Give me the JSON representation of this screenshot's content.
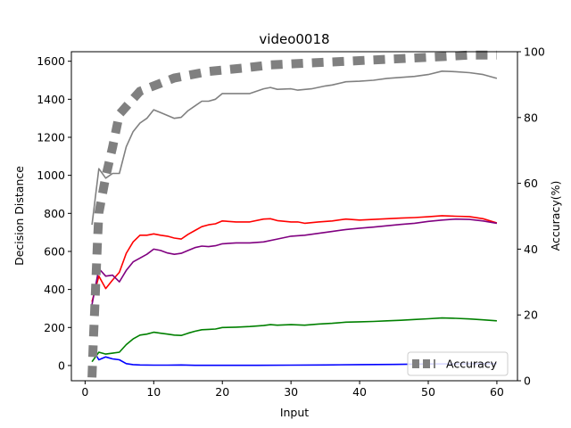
{
  "chart_data": {
    "type": "line",
    "title": "video0018",
    "xlabel": "Input",
    "ylabel_left": "Decision Distance",
    "ylabel_right": "Accuracy(%)",
    "xlim": [
      -2,
      63
    ],
    "ylim_left": [
      -80,
      1650
    ],
    "ylim_right": [
      0,
      100
    ],
    "x_ticks": [
      0,
      10,
      20,
      30,
      40,
      50,
      60
    ],
    "y_ticks_left": [
      0,
      200,
      400,
      600,
      800,
      1000,
      1200,
      1400,
      1600
    ],
    "y_ticks_right": [
      0,
      20,
      40,
      60,
      80,
      100
    ],
    "grid": false,
    "legend": {
      "placement": "lower-right",
      "entries": [
        "Accuracy"
      ]
    },
    "colors": {
      "gray": "#808080",
      "red": "#ff0000",
      "purple": "#800080",
      "green": "#008000",
      "blue": "#0000ff",
      "accuracy": "#808080"
    },
    "series_left": [
      {
        "color": "gray",
        "points": [
          [
            1,
            740
          ],
          [
            2,
            1035
          ],
          [
            3,
            985
          ],
          [
            4,
            1010
          ],
          [
            5,
            1010
          ],
          [
            6,
            1150
          ],
          [
            7,
            1230
          ],
          [
            8,
            1275
          ],
          [
            9,
            1300
          ],
          [
            10,
            1345
          ],
          [
            11,
            1330
          ],
          [
            12,
            1315
          ],
          [
            13,
            1300
          ],
          [
            14,
            1305
          ],
          [
            15,
            1340
          ],
          [
            16,
            1365
          ],
          [
            17,
            1390
          ],
          [
            18,
            1390
          ],
          [
            19,
            1400
          ],
          [
            20,
            1430
          ],
          [
            22,
            1430
          ],
          [
            24,
            1430
          ],
          [
            26,
            1455
          ],
          [
            27,
            1462
          ],
          [
            28,
            1452
          ],
          [
            30,
            1455
          ],
          [
            31,
            1448
          ],
          [
            33,
            1455
          ],
          [
            35,
            1470
          ],
          [
            36,
            1475
          ],
          [
            38,
            1492
          ],
          [
            40,
            1495
          ],
          [
            42,
            1500
          ],
          [
            44,
            1510
          ],
          [
            46,
            1515
          ],
          [
            48,
            1520
          ],
          [
            50,
            1530
          ],
          [
            52,
            1548
          ],
          [
            54,
            1545
          ],
          [
            56,
            1540
          ],
          [
            58,
            1530
          ],
          [
            60,
            1510
          ]
        ]
      },
      {
        "color": "red",
        "points": [
          [
            1,
            335
          ],
          [
            2,
            470
          ],
          [
            3,
            405
          ],
          [
            4,
            450
          ],
          [
            5,
            490
          ],
          [
            6,
            590
          ],
          [
            7,
            650
          ],
          [
            8,
            685
          ],
          [
            9,
            685
          ],
          [
            10,
            692
          ],
          [
            11,
            685
          ],
          [
            12,
            680
          ],
          [
            13,
            670
          ],
          [
            14,
            665
          ],
          [
            15,
            690
          ],
          [
            16,
            710
          ],
          [
            17,
            730
          ],
          [
            18,
            740
          ],
          [
            19,
            745
          ],
          [
            20,
            760
          ],
          [
            22,
            755
          ],
          [
            24,
            755
          ],
          [
            26,
            770
          ],
          [
            27,
            772
          ],
          [
            28,
            762
          ],
          [
            30,
            755
          ],
          [
            31,
            755
          ],
          [
            32,
            748
          ],
          [
            34,
            755
          ],
          [
            36,
            760
          ],
          [
            38,
            770
          ],
          [
            40,
            765
          ],
          [
            42,
            768
          ],
          [
            44,
            772
          ],
          [
            46,
            775
          ],
          [
            48,
            778
          ],
          [
            50,
            782
          ],
          [
            52,
            788
          ],
          [
            54,
            785
          ],
          [
            56,
            783
          ],
          [
            58,
            772
          ],
          [
            60,
            750
          ]
        ]
      },
      {
        "color": "purple",
        "points": [
          [
            1,
            320
          ],
          [
            2,
            510
          ],
          [
            3,
            470
          ],
          [
            4,
            475
          ],
          [
            5,
            440
          ],
          [
            6,
            500
          ],
          [
            7,
            545
          ],
          [
            8,
            565
          ],
          [
            9,
            585
          ],
          [
            10,
            612
          ],
          [
            11,
            605
          ],
          [
            12,
            592
          ],
          [
            13,
            585
          ],
          [
            14,
            590
          ],
          [
            15,
            605
          ],
          [
            16,
            620
          ],
          [
            17,
            628
          ],
          [
            18,
            625
          ],
          [
            19,
            630
          ],
          [
            20,
            640
          ],
          [
            22,
            645
          ],
          [
            24,
            645
          ],
          [
            26,
            650
          ],
          [
            28,
            665
          ],
          [
            30,
            680
          ],
          [
            32,
            685
          ],
          [
            34,
            695
          ],
          [
            36,
            705
          ],
          [
            38,
            715
          ],
          [
            40,
            722
          ],
          [
            42,
            728
          ],
          [
            44,
            735
          ],
          [
            46,
            742
          ],
          [
            48,
            748
          ],
          [
            50,
            758
          ],
          [
            52,
            765
          ],
          [
            54,
            770
          ],
          [
            56,
            768
          ],
          [
            58,
            760
          ],
          [
            60,
            748
          ]
        ]
      },
      {
        "color": "green",
        "points": [
          [
            1,
            20
          ],
          [
            2,
            70
          ],
          [
            3,
            60
          ],
          [
            4,
            65
          ],
          [
            5,
            70
          ],
          [
            6,
            110
          ],
          [
            7,
            140
          ],
          [
            8,
            160
          ],
          [
            9,
            165
          ],
          [
            10,
            175
          ],
          [
            11,
            170
          ],
          [
            12,
            165
          ],
          [
            13,
            160
          ],
          [
            14,
            158
          ],
          [
            15,
            170
          ],
          [
            16,
            180
          ],
          [
            17,
            188
          ],
          [
            18,
            190
          ],
          [
            19,
            192
          ],
          [
            20,
            200
          ],
          [
            22,
            202
          ],
          [
            24,
            205
          ],
          [
            26,
            210
          ],
          [
            27,
            215
          ],
          [
            28,
            212
          ],
          [
            30,
            215
          ],
          [
            32,
            212
          ],
          [
            34,
            218
          ],
          [
            36,
            222
          ],
          [
            38,
            228
          ],
          [
            40,
            230
          ],
          [
            42,
            232
          ],
          [
            44,
            235
          ],
          [
            46,
            238
          ],
          [
            48,
            242
          ],
          [
            50,
            246
          ],
          [
            52,
            250
          ],
          [
            54,
            248
          ],
          [
            56,
            245
          ],
          [
            58,
            240
          ],
          [
            60,
            235
          ]
        ]
      },
      {
        "color": "blue",
        "points": [
          [
            1,
            90
          ],
          [
            2,
            30
          ],
          [
            3,
            45
          ],
          [
            4,
            35
          ],
          [
            5,
            30
          ],
          [
            6,
            10
          ],
          [
            7,
            5
          ],
          [
            8,
            3
          ],
          [
            10,
            2
          ],
          [
            12,
            2
          ],
          [
            14,
            3
          ],
          [
            16,
            1
          ],
          [
            20,
            1
          ],
          [
            25,
            1
          ],
          [
            30,
            2
          ],
          [
            35,
            3
          ],
          [
            40,
            5
          ],
          [
            45,
            6
          ],
          [
            50,
            8
          ],
          [
            55,
            9
          ],
          [
            60,
            10
          ]
        ]
      }
    ],
    "accuracy_series": {
      "name": "Accuracy",
      "color": "accuracy",
      "points": [
        [
          1,
          1
        ],
        [
          1.2,
          12
        ],
        [
          1.4,
          22
        ],
        [
          1.6,
          32
        ],
        [
          1.8,
          42
        ],
        [
          2,
          51
        ],
        [
          3,
          62
        ],
        [
          4,
          71
        ],
        [
          5,
          81
        ],
        [
          8,
          88
        ],
        [
          13,
          92
        ],
        [
          18,
          94
        ],
        [
          23,
          95
        ],
        [
          27,
          96
        ],
        [
          32,
          96.5
        ],
        [
          37,
          97
        ],
        [
          42,
          97.5
        ],
        [
          47,
          98
        ],
        [
          52,
          98.5
        ],
        [
          56,
          99
        ],
        [
          60,
          99
        ]
      ]
    }
  }
}
